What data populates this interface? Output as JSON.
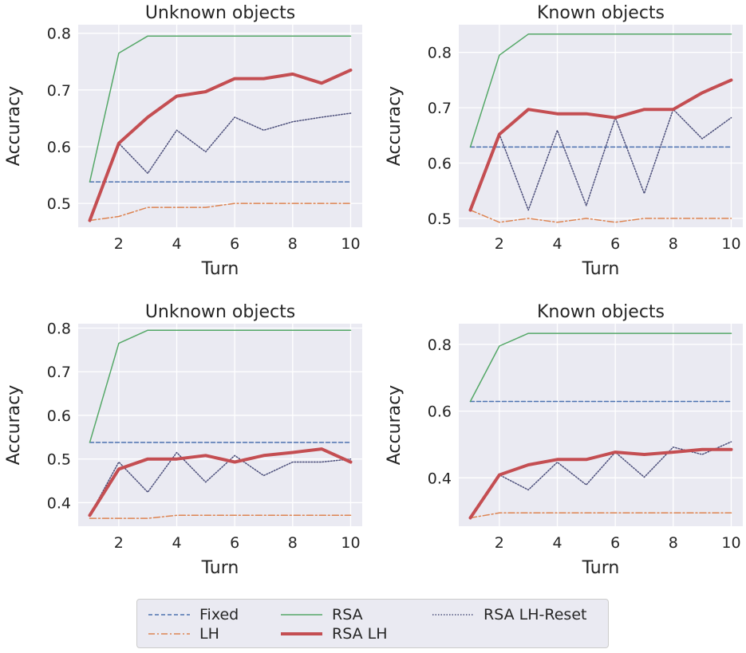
{
  "colors": {
    "fixed": "#4c72b0",
    "lh": "#dd8452",
    "rsa": "#55a868",
    "rsa_lh": "#c44e52",
    "rsa_lh_reset": "#4b4e7a",
    "panel_bg": "#eaeaf2",
    "grid": "#ffffff",
    "text": "#262626"
  },
  "legend": {
    "items": [
      {
        "key": "fixed",
        "label": "Fixed"
      },
      {
        "key": "lh",
        "label": "LH"
      },
      {
        "key": "rsa",
        "label": "RSA"
      },
      {
        "key": "rsa_lh",
        "label": "RSA LH"
      },
      {
        "key": "rsa_lh_reset",
        "label": "RSA LH-Reset"
      }
    ]
  },
  "chart_data": [
    {
      "type": "line",
      "title": "Unknown objects",
      "xlabel": "Turn",
      "ylabel": "Accuracy",
      "xlim": [
        0.6,
        10.4
      ],
      "ylim": [
        0.458,
        0.815
      ],
      "xticks": [
        2,
        4,
        6,
        8,
        10
      ],
      "yticks": [
        0.5,
        0.6,
        0.7,
        0.8
      ],
      "ytick_labels": [
        "0.5",
        "0.6",
        "0.7",
        "0.8"
      ],
      "x": [
        1,
        2,
        3,
        4,
        5,
        6,
        7,
        8,
        9,
        10
      ],
      "series": [
        {
          "key": "fixed",
          "name": "Fixed",
          "values": [
            0.538,
            0.538,
            0.538,
            0.538,
            0.538,
            0.538,
            0.538,
            0.538,
            0.538,
            0.538
          ]
        },
        {
          "key": "lh",
          "name": "LH",
          "values": [
            0.47,
            0.477,
            0.493,
            0.493,
            0.493,
            0.5,
            0.5,
            0.5,
            0.5,
            0.5
          ]
        },
        {
          "key": "rsa",
          "name": "RSA",
          "values": [
            0.538,
            0.765,
            0.795,
            0.795,
            0.795,
            0.795,
            0.795,
            0.795,
            0.795,
            0.795
          ]
        },
        {
          "key": "rsa_lh",
          "name": "RSA LH",
          "values": [
            0.47,
            0.606,
            0.652,
            0.689,
            0.697,
            0.72,
            0.72,
            0.728,
            0.712,
            0.735
          ]
        },
        {
          "key": "rsa_lh_reset",
          "name": "RSA LH-Reset",
          "values": [
            0.47,
            0.606,
            0.553,
            0.629,
            0.591,
            0.652,
            0.629,
            0.644,
            0.652,
            0.659
          ]
        }
      ]
    },
    {
      "type": "line",
      "title": "Known objects",
      "xlabel": "Turn",
      "ylabel": "Accuracy",
      "xlim": [
        0.6,
        10.4
      ],
      "ylim": [
        0.484,
        0.85
      ],
      "xticks": [
        2,
        4,
        6,
        8,
        10
      ],
      "yticks": [
        0.5,
        0.6,
        0.7,
        0.8
      ],
      "ytick_labels": [
        "0.5",
        "0.6",
        "0.7",
        "0.8"
      ],
      "x": [
        1,
        2,
        3,
        4,
        5,
        6,
        7,
        8,
        9,
        10
      ],
      "series": [
        {
          "key": "fixed",
          "name": "Fixed",
          "values": [
            0.629,
            0.629,
            0.629,
            0.629,
            0.629,
            0.629,
            0.629,
            0.629,
            0.629,
            0.629
          ]
        },
        {
          "key": "lh",
          "name": "LH",
          "values": [
            0.515,
            0.493,
            0.5,
            0.493,
            0.5,
            0.493,
            0.5,
            0.5,
            0.5,
            0.5
          ]
        },
        {
          "key": "rsa",
          "name": "RSA",
          "values": [
            0.629,
            0.795,
            0.833,
            0.833,
            0.833,
            0.833,
            0.833,
            0.833,
            0.833,
            0.833
          ]
        },
        {
          "key": "rsa_lh",
          "name": "RSA LH",
          "values": [
            0.515,
            0.652,
            0.697,
            0.689,
            0.689,
            0.682,
            0.697,
            0.697,
            0.727,
            0.75
          ]
        },
        {
          "key": "rsa_lh_reset",
          "name": "RSA LH-Reset",
          "values": [
            0.515,
            0.652,
            0.515,
            0.659,
            0.523,
            0.682,
            0.545,
            0.697,
            0.644,
            0.682
          ]
        }
      ]
    },
    {
      "type": "line",
      "title": "Unknown objects",
      "xlabel": "Turn",
      "ylabel": "Accuracy",
      "xlim": [
        0.6,
        10.4
      ],
      "ylim": [
        0.346,
        0.81
      ],
      "xticks": [
        2,
        4,
        6,
        8,
        10
      ],
      "yticks": [
        0.4,
        0.5,
        0.6,
        0.7,
        0.8
      ],
      "ytick_labels": [
        "0.4",
        "0.5",
        "0.6",
        "0.7",
        "0.8"
      ],
      "x": [
        1,
        2,
        3,
        4,
        5,
        6,
        7,
        8,
        9,
        10
      ],
      "series": [
        {
          "key": "fixed",
          "name": "Fixed",
          "values": [
            0.538,
            0.538,
            0.538,
            0.538,
            0.538,
            0.538,
            0.538,
            0.538,
            0.538,
            0.538
          ]
        },
        {
          "key": "lh",
          "name": "LH",
          "values": [
            0.364,
            0.364,
            0.364,
            0.371,
            0.371,
            0.371,
            0.371,
            0.371,
            0.371,
            0.371
          ]
        },
        {
          "key": "rsa",
          "name": "RSA",
          "values": [
            0.538,
            0.765,
            0.795,
            0.795,
            0.795,
            0.795,
            0.795,
            0.795,
            0.795,
            0.795
          ]
        },
        {
          "key": "rsa_lh",
          "name": "RSA LH",
          "values": [
            0.371,
            0.477,
            0.5,
            0.5,
            0.508,
            0.493,
            0.508,
            0.515,
            0.523,
            0.493
          ]
        },
        {
          "key": "rsa_lh_reset",
          "name": "RSA LH-Reset",
          "values": [
            0.371,
            0.493,
            0.424,
            0.515,
            0.447,
            0.508,
            0.462,
            0.493,
            0.493,
            0.5
          ]
        }
      ]
    },
    {
      "type": "line",
      "title": "Known objects",
      "xlabel": "Turn",
      "ylabel": "Accuracy",
      "xlim": [
        0.6,
        10.4
      ],
      "ylim": [
        0.255,
        0.862
      ],
      "xticks": [
        2,
        4,
        6,
        8,
        10
      ],
      "yticks": [
        0.4,
        0.6,
        0.8
      ],
      "ytick_labels": [
        "0.4",
        "0.6",
        "0.8"
      ],
      "x": [
        1,
        2,
        3,
        4,
        5,
        6,
        7,
        8,
        9,
        10
      ],
      "series": [
        {
          "key": "fixed",
          "name": "Fixed",
          "values": [
            0.629,
            0.629,
            0.629,
            0.629,
            0.629,
            0.629,
            0.629,
            0.629,
            0.629,
            0.629
          ]
        },
        {
          "key": "lh",
          "name": "LH",
          "values": [
            0.28,
            0.295,
            0.295,
            0.295,
            0.295,
            0.295,
            0.295,
            0.295,
            0.295,
            0.295
          ]
        },
        {
          "key": "rsa",
          "name": "RSA",
          "values": [
            0.629,
            0.795,
            0.833,
            0.833,
            0.833,
            0.833,
            0.833,
            0.833,
            0.833,
            0.833
          ]
        },
        {
          "key": "rsa_lh",
          "name": "RSA LH",
          "values": [
            0.28,
            0.409,
            0.439,
            0.455,
            0.455,
            0.477,
            0.47,
            0.477,
            0.485,
            0.485
          ]
        },
        {
          "key": "rsa_lh_reset",
          "name": "RSA LH-Reset",
          "values": [
            0.28,
            0.409,
            0.364,
            0.447,
            0.379,
            0.477,
            0.402,
            0.492,
            0.47,
            0.508
          ]
        }
      ]
    }
  ]
}
